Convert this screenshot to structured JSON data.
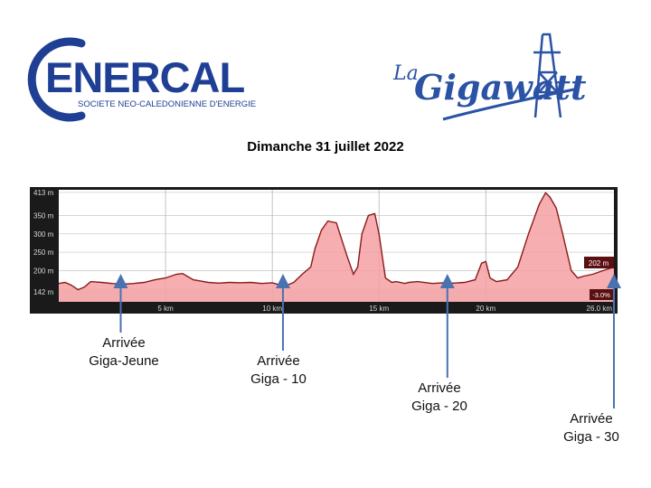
{
  "logos": {
    "enercal_name": "ENERCAL",
    "enercal_tagline": "SOCIETE NEO-CALEDONIENNE D'ENERGIE",
    "event_prefix": "La",
    "event_name": "Gigawatt",
    "colors": {
      "enercal_blue": "#1f3f95",
      "gigawatt_blue": "#2a52a5"
    }
  },
  "date": "Dimanche 31 juillet 2022",
  "chart_data": {
    "type": "area",
    "title": "",
    "xlabel": "",
    "ylabel": "",
    "x_unit": "km",
    "y_unit": "m",
    "xlim": [
      0,
      26.0
    ],
    "ylim": [
      115,
      420
    ],
    "y_ticks": [
      {
        "value": 413,
        "label": "413 m"
      },
      {
        "value": 350,
        "label": "350 m"
      },
      {
        "value": 300,
        "label": "300 m"
      },
      {
        "value": 250,
        "label": "250 m"
      },
      {
        "value": 200,
        "label": "200 m"
      },
      {
        "value": 142,
        "label": "142 m"
      }
    ],
    "x_ticks": [
      {
        "value": 5,
        "label": "5 km"
      },
      {
        "value": 10,
        "label": "10 km"
      },
      {
        "value": 15,
        "label": "15 km"
      },
      {
        "value": 20,
        "label": "20 km"
      },
      {
        "value": 26.0,
        "label": "26.0 km"
      }
    ],
    "grid": true,
    "current_elevation_label": "202 m",
    "grade_label": "-3.0%",
    "colors": {
      "fill": "#f5a0a3",
      "line": "#8b1a1a",
      "background": "#ffffff",
      "frame": "#1a1a1a"
    },
    "series": [
      {
        "x": [
          0,
          0.3,
          0.6,
          0.9,
          1.2,
          1.5,
          2.0,
          2.5,
          3.0,
          3.5,
          4.0,
          4.5,
          5.0,
          5.5,
          5.8,
          6.0,
          6.3,
          6.6,
          7.0,
          7.5,
          8.0,
          8.5,
          9.0,
          9.5,
          10.0,
          10.3,
          10.6,
          11.0,
          11.4,
          11.8,
          12.0,
          12.3,
          12.6,
          13.0,
          13.5,
          13.8,
          14.0,
          14.2,
          14.5,
          14.8,
          15.0,
          15.3,
          15.6,
          15.8,
          16.0,
          16.2,
          16.4,
          16.8,
          17.5,
          18.0,
          18.5,
          19.0,
          19.5,
          19.8,
          20.0,
          20.2,
          20.5,
          21.0,
          21.5,
          22.0,
          22.5,
          22.8,
          23.0,
          23.3,
          23.6,
          24.0,
          24.3,
          24.6,
          25.0,
          25.5,
          26.0
        ],
        "y": [
          165,
          168,
          160,
          148,
          155,
          170,
          168,
          165,
          163,
          165,
          168,
          175,
          180,
          190,
          192,
          185,
          175,
          172,
          168,
          166,
          168,
          167,
          168,
          165,
          167,
          162,
          158,
          168,
          190,
          210,
          260,
          310,
          335,
          330,
          240,
          190,
          210,
          300,
          350,
          355,
          300,
          180,
          168,
          170,
          168,
          165,
          168,
          170,
          165,
          167,
          166,
          168,
          175,
          220,
          225,
          180,
          170,
          175,
          210,
          300,
          380,
          412,
          400,
          370,
          300,
          200,
          180,
          185,
          190,
          200,
          210
        ]
      }
    ],
    "annotations": [
      {
        "line1": "Arrivée",
        "line2": "Giga-Jeune",
        "x_km": 2.9
      },
      {
        "line1": "Arrivée",
        "line2": "Giga - 10",
        "x_km": 10.5
      },
      {
        "line1": "Arrivée",
        "line2": "Giga - 20",
        "x_km": 18.2
      },
      {
        "line1": "Arrivée",
        "line2": "Giga - 30",
        "x_km": 26.0
      }
    ]
  }
}
